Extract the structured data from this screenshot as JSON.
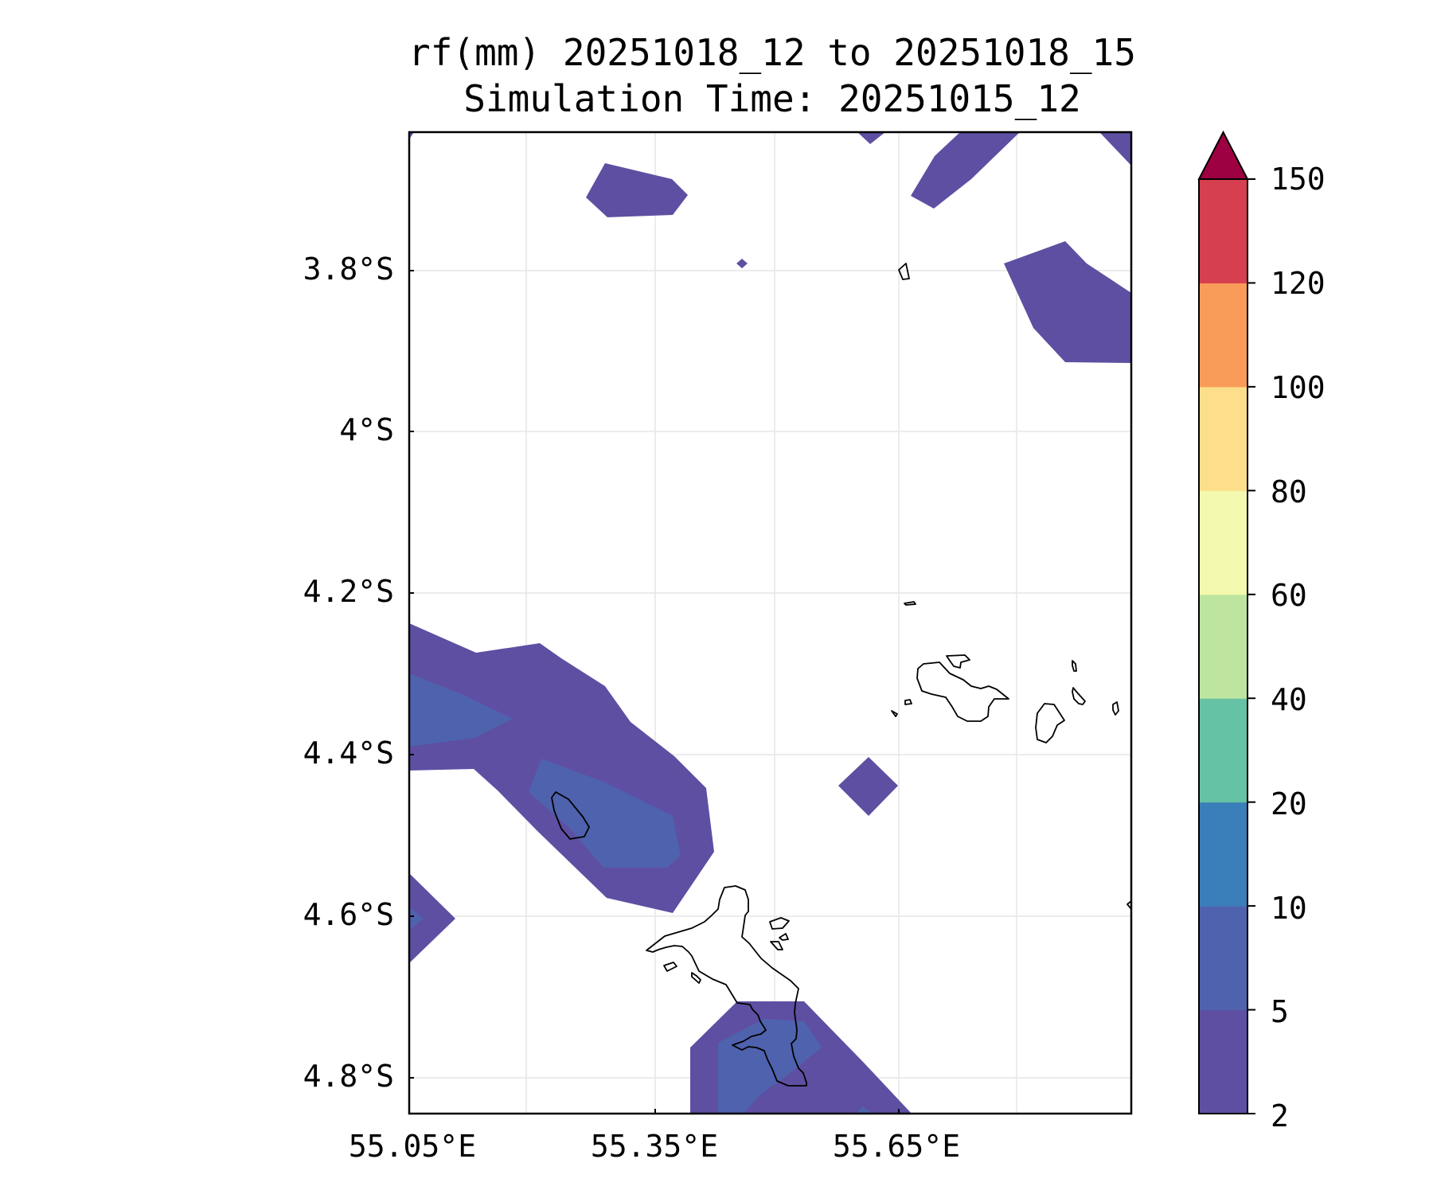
{
  "title": {
    "line1": "rf(mm) 20251018_12 to 20251018_15",
    "line2": "Simulation Time: 20251015_12"
  },
  "map": {
    "lon_range": [
      55.05,
      55.95
    ],
    "lat_range": [
      -4.845,
      -3.63
    ],
    "x_ticks": [
      {
        "value": 55.05,
        "label": "55.05°E"
      },
      {
        "value": 55.35,
        "label": "55.35°E"
      },
      {
        "value": 55.65,
        "label": "55.65°E"
      }
    ],
    "y_ticks": [
      {
        "value": -3.8,
        "label": "3.8°S"
      },
      {
        "value": -4.0,
        "label": "4°S"
      },
      {
        "value": -4.2,
        "label": "4.2°S"
      },
      {
        "value": -4.4,
        "label": "4.4°S"
      },
      {
        "value": -4.6,
        "label": "4.6°S"
      },
      {
        "value": -4.8,
        "label": "4.8°S"
      }
    ],
    "gridlines": true
  },
  "colorbar": {
    "extend": "max",
    "levels": [
      2,
      5,
      10,
      20,
      40,
      60,
      80,
      100,
      120,
      150
    ],
    "level_labels": [
      "2",
      "5",
      "10",
      "20",
      "40",
      "60",
      "80",
      "100",
      "120",
      "150"
    ],
    "colors": [
      "#5e4fa2",
      "#4f62ae",
      "#3a7fba",
      "#66c2a5",
      "#bde59f",
      "#f3f9ae",
      "#fddf8b",
      "#f99c5a",
      "#d53f4f"
    ],
    "over_color": "#9e0142"
  },
  "colors": {
    "rain_2_5": "#5e4fa2",
    "rain_5_10": "#4f62ae",
    "coastline": "#000000",
    "grid": "#e6e6e6"
  }
}
